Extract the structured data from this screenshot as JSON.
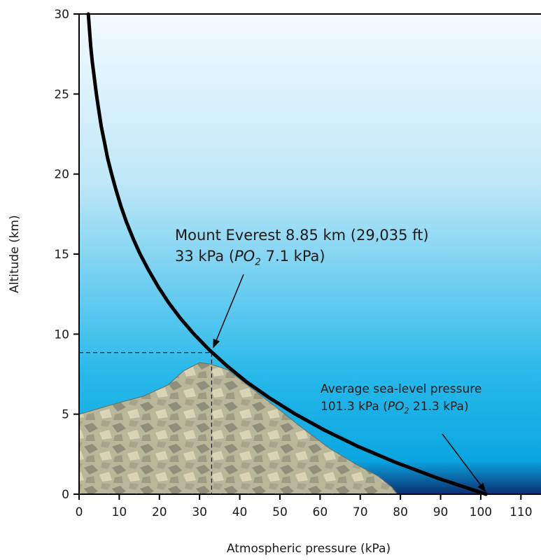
{
  "chart_data": {
    "type": "line",
    "x_label": "Atmospheric pressure (kPa)",
    "y_label": "Altitude (km)",
    "x": [
      101.3,
      89.3,
      78.7,
      69.3,
      61.1,
      53.9,
      47.5,
      41.8,
      36.9,
      32.5,
      28.6,
      25.2,
      22.2,
      19.6,
      17.3,
      15.2,
      13.4,
      11.8,
      10.4,
      9.2,
      8.1,
      7.1,
      6.3,
      5.5,
      4.9,
      4.3,
      3.8,
      3.3,
      2.9,
      2.6,
      2.3
    ],
    "series": [
      {
        "color": "#000000",
        "values": [
          0,
          1,
          2,
          3,
          4,
          5,
          6,
          7,
          8,
          9,
          10,
          11,
          12,
          13,
          14,
          15,
          16,
          17,
          18,
          19,
          20,
          21,
          22,
          23,
          24,
          25,
          26,
          27,
          28,
          29,
          30
        ]
      }
    ],
    "xlim": [
      0,
      115
    ],
    "ylim": [
      0,
      30
    ],
    "xticks": [
      0,
      10,
      20,
      30,
      40,
      50,
      60,
      70,
      80,
      90,
      100,
      110
    ],
    "yticks": [
      0,
      5,
      10,
      15,
      20,
      25,
      30
    ],
    "annotations": [
      {
        "x": 33,
        "y": 8.85,
        "lines": [
          [
            "Mount Everest 8.85 km (29,035 ft)"
          ],
          [
            "33 kPa (",
            {
              "text": "PO",
              "style": "italic"
            },
            {
              "text": "2",
              "style": "sub"
            },
            " 7.1 kPa)"
          ]
        ]
      },
      {
        "x": 101.3,
        "y": 0,
        "lines": [
          [
            "Average sea-level pressure"
          ],
          [
            "101.3 kPa (",
            {
              "text": "PO",
              "style": "italic"
            },
            {
              "text": "2",
              "style": "sub"
            },
            " 21.3 kPa)"
          ]
        ]
      }
    ]
  }
}
